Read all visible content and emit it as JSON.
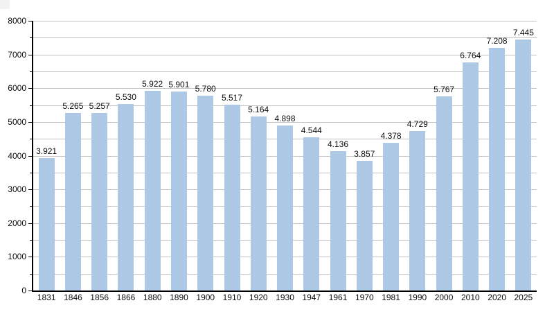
{
  "chart_data": {
    "type": "bar",
    "title": "",
    "xlabel": "",
    "ylabel": "",
    "categories": [
      "1831",
      "1846",
      "1856",
      "1866",
      "1880",
      "1890",
      "1900",
      "1910",
      "1920",
      "1930",
      "1947",
      "1961",
      "1970",
      "1981",
      "1990",
      "2000",
      "2010",
      "2020",
      "2025"
    ],
    "values": [
      3921,
      5265,
      5257,
      5530,
      5922,
      5901,
      5780,
      5517,
      5164,
      4898,
      4544,
      4136,
      3857,
      4378,
      4729,
      5767,
      6764,
      7208,
      7445
    ],
    "value_labels": [
      "3.921",
      "5.265",
      "5.257",
      "5.530",
      "5.922",
      "5.901",
      "5.780",
      "5.517",
      "5.164",
      "4.898",
      "4.544",
      "4.136",
      "3.857",
      "4.378",
      "4.729",
      "5.767",
      "6.764",
      "7.208",
      "7.445"
    ],
    "ylim": [
      0,
      8000
    ],
    "yticks": [
      "0",
      "1000",
      "2000",
      "3000",
      "4000",
      "5000",
      "6000",
      "7000",
      "8000"
    ],
    "ytick_step": 1000,
    "grid_step": 500,
    "grid": true,
    "legend": false
  },
  "colors": {
    "bar_fill": "#adc9e5",
    "gridline": "#c2c2c2",
    "axis": "#000000",
    "text": "#0d0d0d",
    "corner_artifact": "#f2f2f2"
  }
}
